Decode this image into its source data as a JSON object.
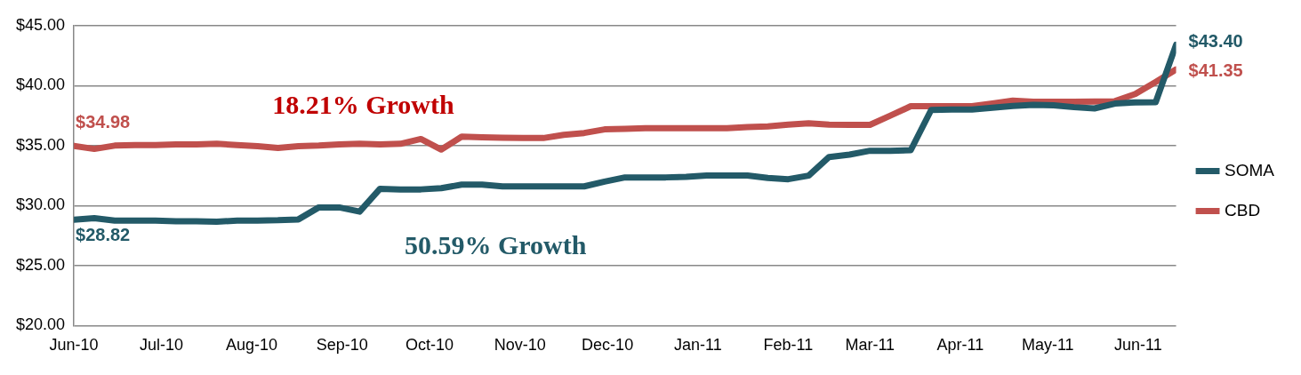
{
  "chart_data": {
    "type": "line",
    "x": [
      "2010-06-01",
      "2010-06-08",
      "2010-06-15",
      "2010-06-22",
      "2010-06-29",
      "2010-07-06",
      "2010-07-13",
      "2010-07-20",
      "2010-07-27",
      "2010-08-03",
      "2010-08-10",
      "2010-08-17",
      "2010-08-24",
      "2010-08-31",
      "2010-09-07",
      "2010-09-14",
      "2010-09-21",
      "2010-09-28",
      "2010-10-05",
      "2010-10-12",
      "2010-10-19",
      "2010-10-26",
      "2010-11-02",
      "2010-11-09",
      "2010-11-16",
      "2010-11-23",
      "2010-11-30",
      "2010-12-07",
      "2010-12-14",
      "2010-12-21",
      "2010-12-28",
      "2011-01-04",
      "2011-01-11",
      "2011-01-18",
      "2011-01-25",
      "2011-02-01",
      "2011-02-08",
      "2011-02-15",
      "2011-02-22",
      "2011-03-01",
      "2011-03-08",
      "2011-03-15",
      "2011-03-22",
      "2011-03-29",
      "2011-04-05",
      "2011-04-12",
      "2011-04-19",
      "2011-04-26",
      "2011-05-03",
      "2011-05-10",
      "2011-05-17",
      "2011-05-24",
      "2011-05-31",
      "2011-06-07",
      "2011-06-14"
    ],
    "series": [
      {
        "name": "SOMA",
        "color": "#235a68",
        "values": [
          28.82,
          28.95,
          28.75,
          28.75,
          28.75,
          28.7,
          28.7,
          28.65,
          28.75,
          28.75,
          28.78,
          28.85,
          29.85,
          29.85,
          29.5,
          31.4,
          31.35,
          31.35,
          31.45,
          31.75,
          31.75,
          31.6,
          31.6,
          31.6,
          31.6,
          31.6,
          32.0,
          32.35,
          32.35,
          32.35,
          32.4,
          32.5,
          32.5,
          32.5,
          32.3,
          32.2,
          32.5,
          34.05,
          34.25,
          34.57,
          34.57,
          34.62,
          37.97,
          38.0,
          38.0,
          38.15,
          38.3,
          38.4,
          38.35,
          38.2,
          38.1,
          38.5,
          38.6,
          38.62,
          43.4
        ],
        "value_labels": [
          "$28.82",
          null,
          null,
          null,
          null,
          null,
          null,
          null,
          null,
          null,
          null,
          null,
          null,
          null,
          null,
          null,
          null,
          null,
          null,
          null,
          null,
          null,
          null,
          null,
          null,
          null,
          null,
          null,
          null,
          null,
          null,
          null,
          null,
          null,
          null,
          null,
          null,
          null,
          null,
          null,
          null,
          null,
          null,
          null,
          null,
          null,
          null,
          null,
          null,
          null,
          null,
          null,
          null,
          null,
          "$43.40"
        ]
      },
      {
        "name": "CBD",
        "color": "#c0504d",
        "values": [
          34.98,
          34.72,
          35.0,
          35.05,
          35.05,
          35.1,
          35.1,
          35.15,
          35.05,
          34.95,
          34.8,
          34.95,
          35.0,
          35.1,
          35.15,
          35.1,
          35.15,
          35.55,
          34.67,
          35.75,
          35.7,
          35.65,
          35.63,
          35.63,
          35.9,
          36.05,
          36.35,
          36.4,
          36.45,
          36.45,
          36.45,
          36.45,
          36.45,
          36.55,
          36.6,
          36.75,
          36.85,
          36.75,
          36.73,
          36.73,
          37.5,
          38.28,
          38.28,
          38.28,
          38.28,
          38.5,
          38.74,
          38.65,
          38.65,
          38.66,
          38.68,
          38.7,
          39.3,
          40.3,
          41.35
        ],
        "value_labels": [
          "$34.98",
          null,
          null,
          null,
          null,
          null,
          null,
          null,
          null,
          null,
          null,
          null,
          null,
          null,
          null,
          null,
          null,
          null,
          null,
          null,
          null,
          null,
          null,
          null,
          null,
          null,
          null,
          null,
          null,
          null,
          null,
          null,
          null,
          null,
          null,
          null,
          null,
          null,
          null,
          null,
          null,
          null,
          null,
          null,
          null,
          null,
          null,
          null,
          null,
          null,
          null,
          null,
          null,
          null,
          "$41.35"
        ]
      }
    ],
    "xlim": [
      "2010-06-01",
      "2011-06-14"
    ],
    "xticks": [
      {
        "value": "2010-06-01",
        "label": "Jun-10"
      },
      {
        "value": "2010-07-01",
        "label": "Jul-10"
      },
      {
        "value": "2010-08-01",
        "label": "Aug-10"
      },
      {
        "value": "2010-09-01",
        "label": "Sep-10"
      },
      {
        "value": "2010-10-01",
        "label": "Oct-10"
      },
      {
        "value": "2010-11-01",
        "label": "Nov-10"
      },
      {
        "value": "2010-12-01",
        "label": "Dec-10"
      },
      {
        "value": "2011-01-01",
        "label": "Jan-11"
      },
      {
        "value": "2011-02-01",
        "label": "Feb-11"
      },
      {
        "value": "2011-03-01",
        "label": "Mar-11"
      },
      {
        "value": "2011-04-01",
        "label": "Apr-11"
      },
      {
        "value": "2011-05-01",
        "label": "May-11"
      },
      {
        "value": "2011-06-01",
        "label": "Jun-11"
      }
    ],
    "ylim": [
      20,
      45
    ],
    "yticks": [
      {
        "value": 20,
        "label": "$20.00"
      },
      {
        "value": 25,
        "label": "$25.00"
      },
      {
        "value": 30,
        "label": "$30.00"
      },
      {
        "value": 35,
        "label": "$35.00"
      },
      {
        "value": 40,
        "label": "$40.00"
      },
      {
        "value": 45,
        "label": "$45.00"
      }
    ],
    "grid": "y",
    "legend": "right",
    "marker": "none",
    "line_style": "solid",
    "annotations": [
      "18.21% Growth",
      "50.59% Growth"
    ]
  }
}
